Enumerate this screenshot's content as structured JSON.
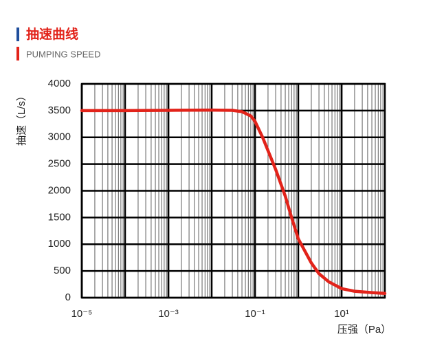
{
  "header": {
    "title": "抽速曲线",
    "subtitle": "PUMPING SPEED"
  },
  "chart_data": {
    "type": "line",
    "log_x": true,
    "grid": true,
    "xlabel": "压强（Pa）",
    "ylabel": "抽速（L/s）",
    "xlim": [
      1e-05,
      100
    ],
    "ylim": [
      0,
      4000
    ],
    "xticks": [
      {
        "value": 1e-05,
        "label": "10⁻⁵"
      },
      {
        "value": 0.001,
        "label": "10⁻³"
      },
      {
        "value": 0.1,
        "label": "10⁻¹"
      },
      {
        "value": 10,
        "label": "10¹"
      }
    ],
    "yticks": [
      0,
      500,
      1000,
      1500,
      2000,
      2500,
      3000,
      3500,
      4000
    ],
    "series": [
      {
        "color": "#e2231a",
        "x": [
          1e-05,
          0.0001,
          0.001,
          0.01,
          0.03,
          0.05,
          0.08,
          0.1,
          0.15,
          0.2,
          0.3,
          0.5,
          0.7,
          1,
          2,
          3,
          5,
          10,
          20,
          50,
          100
        ],
        "values": [
          3500,
          3500,
          3505,
          3510,
          3505,
          3480,
          3400,
          3300,
          3000,
          2750,
          2400,
          1900,
          1500,
          1100,
          650,
          450,
          300,
          170,
          120,
          95,
          80
        ]
      }
    ]
  }
}
